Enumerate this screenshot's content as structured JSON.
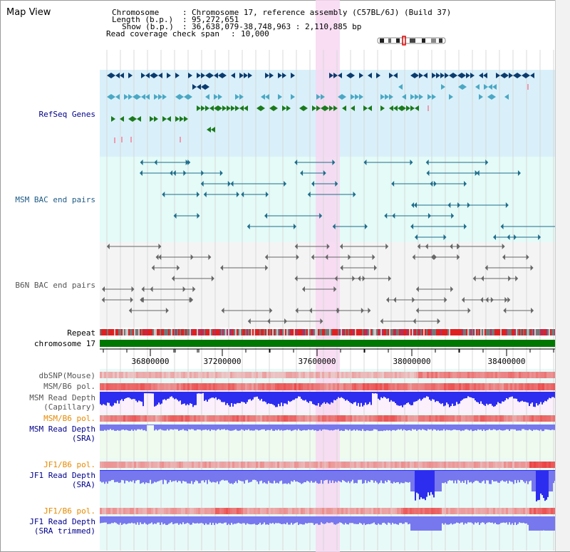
{
  "header": {
    "title": "Map View",
    "chromosome_label": "Chromosome",
    "chromosome_value": "Chromosome 17, reference assembly (C57BL/6J) (Build 37)",
    "length_label": "Length (b.p.)",
    "length_value": "95,272,651",
    "show_label": "Show (b.p.)",
    "show_value": "36,638,079-38,748,963 : 2,110,885 bp",
    "coverage_label": "Read coverage check span",
    "coverage_value": "10,000"
  },
  "tracks": {
    "refseq": "RefSeq Genes",
    "msm_bac": "MSM BAC end pairs",
    "b6n_bac": "B6N BAC end pairs",
    "repeat": "Repeat",
    "chromosome": "chromosome 17",
    "dbsnp": "dbSNP(Mouse)",
    "msm_b6_pol_1": "MSM/B6 pol.",
    "msm_depth_cap_1": "MSM Read Depth",
    "msm_depth_cap_2": "(Capillary)",
    "msm_b6_pol_2": "MSM/B6 pol.",
    "msm_depth_sra_1": "MSM Read Depth",
    "msm_depth_sra_2": "(SRA)",
    "jf1_b6_pol_1": "JF1/B6 pol.",
    "jf1_depth_sra_1": "JF1 Read Depth",
    "jf1_depth_sra_2": "(SRA)",
    "jf1_b6_pol_2": "JF1/B6 pol.",
    "jf1_depth_trim_1": "JF1 Read Depth",
    "jf1_depth_trim_2": "(SRA trimmed)"
  },
  "axis": {
    "ticks": [
      "36800000",
      "37200000",
      "37600000",
      "38000000",
      "38400000"
    ]
  },
  "colors": {
    "refseq_bg": "#d9f0fa",
    "bac_bg": "#e4fbf7",
    "highlight": "#f7d7f1",
    "chromosome_bar": "#007700",
    "depth_blue": "#2d2df0",
    "depth_light": "#7777ee",
    "pol_pink": "#f4b8b8",
    "pol_red": "#e23030",
    "msm_bac_feature": "#1f6d8c",
    "b6n_bac_feature": "#666666",
    "refseq_dark": "#0b3b6e",
    "refseq_light": "#4aa8c4",
    "refseq_green": "#1b7a1b"
  }
}
